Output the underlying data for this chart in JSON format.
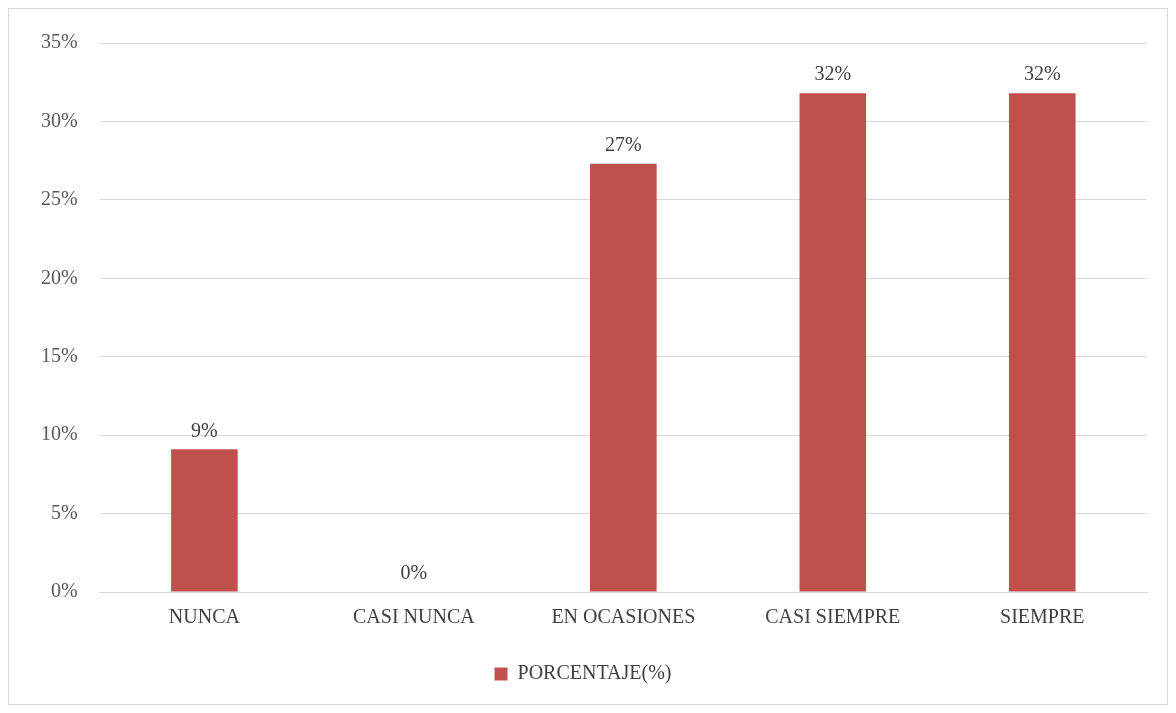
{
  "chart_data": {
    "type": "bar",
    "categories": [
      "NUNCA",
      "CASI NUNCA",
      "EN OCASIONES",
      "CASI SIEMPRE",
      "SIEMPRE"
    ],
    "series": [
      {
        "name": "PORCENTAJE(%)",
        "color": "#c0504d",
        "values": [
          9.1,
          0,
          27.3,
          31.8,
          31.8
        ],
        "value_labels": [
          "9%",
          "0%",
          "27%",
          "32%",
          "32%"
        ]
      }
    ],
    "ylim": [
      0,
      35
    ],
    "yticks": [
      {
        "value": 0,
        "label": "0%"
      },
      {
        "value": 5,
        "label": "5%"
      },
      {
        "value": 10,
        "label": "10%"
      },
      {
        "value": 15,
        "label": "15%"
      },
      {
        "value": 20,
        "label": "20%"
      },
      {
        "value": 25,
        "label": "25%"
      },
      {
        "value": 30,
        "label": "30%"
      },
      {
        "value": 35,
        "label": "35%"
      }
    ],
    "grid": "y",
    "legend": "bottom"
  }
}
